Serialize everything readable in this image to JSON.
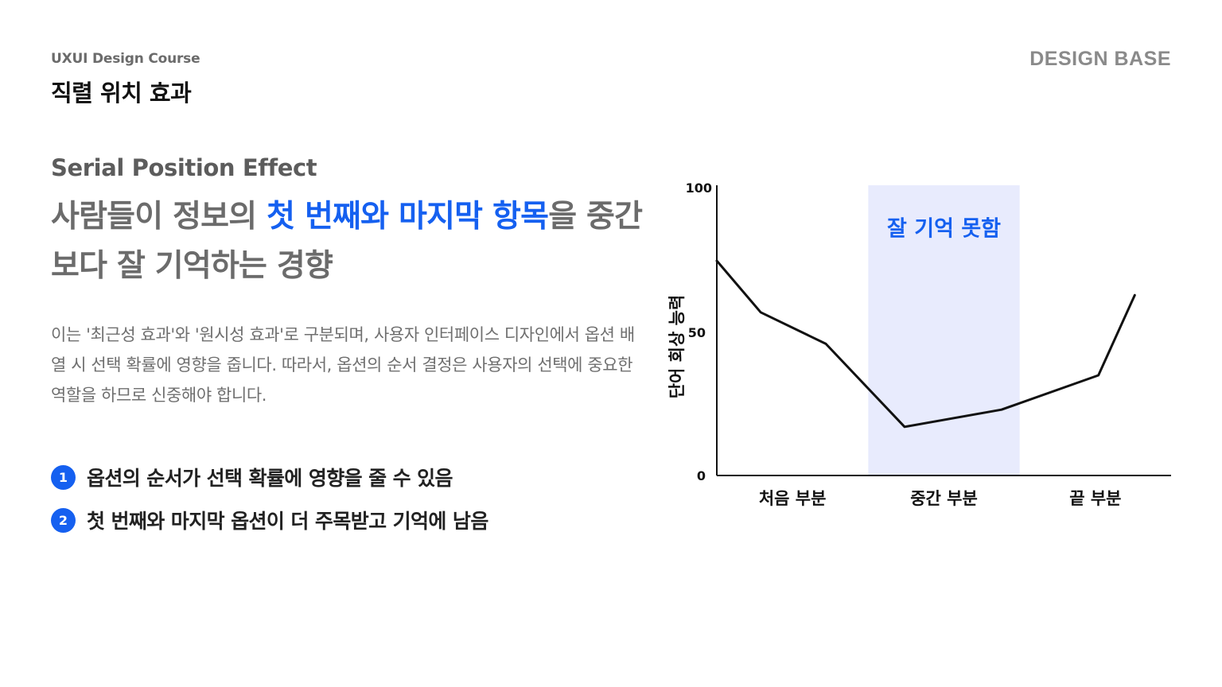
{
  "header": {
    "course_label": "UXUI Design Course",
    "page_title": "직렬 위치 효과",
    "brand_logo": "DESIGN BASE"
  },
  "intro": {
    "subtitle_en": "Serial Position Effect",
    "headline_pre": "사람들이 정보의 ",
    "headline_accent": "첫 번째와 마지막 항목",
    "headline_post": "을 중간보다 잘 기억하는 경향",
    "description": "이는 '최근성 효과'와 '원시성 효과'로 구분되며, 사용자 인터페이스 디자인에서 옵션 배열 시 선택 확률에 영향을 줍니다. 따라서, 옵션의 순서 결정은 사용자의 선택에 중요한 역할을 하므로 신중해야 합니다."
  },
  "points": [
    {
      "num": "1",
      "text": "옵션의 순서가 선택 확률에 영향을 줄 수 있음"
    },
    {
      "num": "2",
      "text": "첫 번째와 마지막 옵션이 더 주목받고 기억에 남음"
    }
  ],
  "colors": {
    "accent": "#1560f0",
    "highlight_band": "#e8ebfd",
    "line": "#111111"
  },
  "chart_data": {
    "type": "line",
    "ylabel": "단어 회상 능력",
    "xlabel": "",
    "ylim": [
      0,
      100
    ],
    "xlim": [
      0,
      3
    ],
    "yticks": [
      "0",
      "50",
      "100"
    ],
    "categories": [
      "처음 부분",
      "중간 부분",
      "끝 부분"
    ],
    "highlight": {
      "x_range": [
        1,
        2
      ],
      "label": "잘 기억 못함"
    },
    "series": [
      {
        "name": "",
        "x": [
          0,
          0.29,
          0.72,
          1.24,
          1.88,
          2.52,
          2.76
        ],
        "y": [
          75,
          57,
          46,
          17,
          23,
          35,
          63
        ]
      }
    ]
  }
}
